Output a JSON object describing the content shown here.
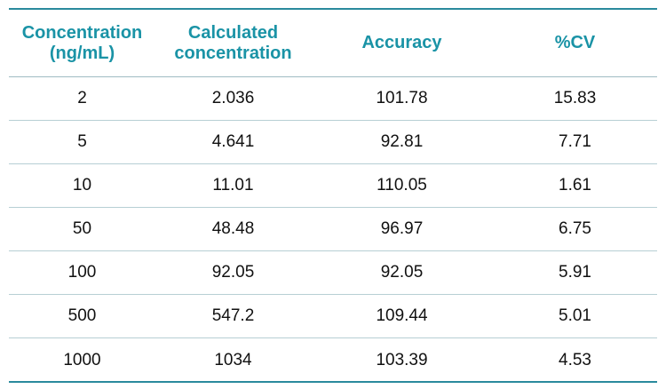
{
  "table": {
    "headers": [
      [
        "Concentration",
        "(ng/mL)"
      ],
      [
        "Calculated",
        "concentration"
      ],
      [
        "Accuracy"
      ],
      [
        "%CV"
      ]
    ],
    "rows": [
      [
        "2",
        "2.036",
        "101.78",
        "15.83"
      ],
      [
        "5",
        "4.641",
        "92.81",
        "7.71"
      ],
      [
        "10",
        "11.01",
        "110.05",
        "1.61"
      ],
      [
        "50",
        "48.48",
        "96.97",
        "6.75"
      ],
      [
        "100",
        "92.05",
        "92.05",
        "5.91"
      ],
      [
        "500",
        "547.2",
        "109.44",
        "5.01"
      ],
      [
        "1000",
        "1034",
        "103.39",
        "4.53"
      ]
    ],
    "colors": {
      "header_text": "#1a93a6",
      "rule": "#2a8a9d",
      "row_divider": "#b7cfd4"
    }
  }
}
